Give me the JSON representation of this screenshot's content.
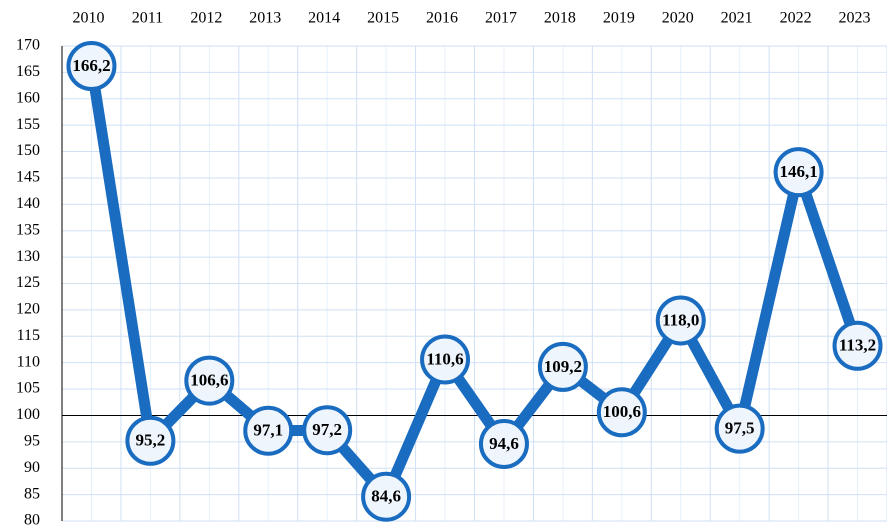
{
  "chart_data": {
    "type": "line",
    "categories": [
      "2010",
      "2011",
      "2012",
      "2013",
      "2014",
      "2015",
      "2016",
      "2017",
      "2018",
      "2019",
      "2020",
      "2021",
      "2022",
      "2023"
    ],
    "series": [
      {
        "color": "#1a6cc0",
        "values": [
          166.2,
          95.2,
          106.6,
          97.1,
          97.2,
          84.6,
          110.6,
          94.6,
          109.2,
          100.6,
          118.0,
          97.5,
          146.1,
          113.2
        ],
        "value_labels": [
          "166,2",
          "95,2",
          "106,6",
          "97,1",
          "97,2",
          "84,6",
          "110,6",
          "94,6",
          "109,2",
          "100,6",
          "118,0",
          "97,5",
          "146,1",
          "113,2"
        ]
      }
    ],
    "ylim": [
      80,
      170
    ],
    "yticks": [
      80,
      85,
      90,
      95,
      100,
      105,
      110,
      115,
      120,
      125,
      130,
      135,
      140,
      145,
      150,
      155,
      160,
      165,
      170
    ],
    "baseline": 100,
    "grid": true
  }
}
